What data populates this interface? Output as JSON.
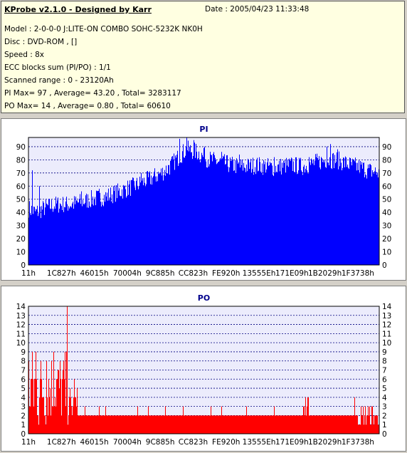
{
  "header": {
    "title": "KProbe v2.1.0 - Designed by Karr",
    "date": "Date : 2005/04/23 11:33:48",
    "lines": [
      "Model : 2-0-0-0 J:LITE-ON COMBO SOHC-5232K NK0H",
      "Disc : DVD-ROM ,  []",
      "Speed : 8x",
      "ECC blocks sum (PI/PO) : 1/1",
      "Scanned range : 0 - 23120Ah",
      "PI Max= 97 , Average= 43.20 , Total= 3283117",
      "PO Max= 14 , Average= 0.80 , Total= 60610"
    ]
  },
  "colors": {
    "pi": "#0000ff",
    "po": "#ff0000",
    "grid": "#000080",
    "plot_bg": "#ececfc"
  },
  "chart_data": [
    {
      "type": "area",
      "title": "PI",
      "x_tick_labels": [
        "11h",
        "1C827h",
        "46015h",
        "70004h",
        "9C885h",
        "CC823h",
        "FE920h",
        "13555Eh",
        "171E09h",
        "1B2029h",
        "1F3738h"
      ],
      "ylim": [
        0,
        97
      ],
      "yticks": [
        0,
        10,
        20,
        30,
        40,
        50,
        60,
        70,
        80,
        90
      ],
      "grid": true,
      "series": [
        {
          "x_fraction": [
            0,
            0.02,
            0.05,
            0.08,
            0.12,
            0.15,
            0.18,
            0.22,
            0.25,
            0.28,
            0.32,
            0.35,
            0.38,
            0.4,
            0.42,
            0.45,
            0.48,
            0.5,
            0.52,
            0.55,
            0.58,
            0.6,
            0.62,
            0.65,
            0.68,
            0.7,
            0.72,
            0.75,
            0.78,
            0.8,
            0.82,
            0.85,
            0.88,
            0.9,
            0.92,
            0.95,
            0.97,
            1.0
          ],
          "values": [
            43,
            40,
            44,
            46,
            46,
            48,
            50,
            52,
            55,
            58,
            62,
            66,
            70,
            74,
            80,
            88,
            86,
            82,
            80,
            78,
            76,
            75,
            75,
            76,
            75,
            74,
            75,
            76,
            75,
            76,
            78,
            80,
            80,
            78,
            76,
            74,
            72,
            70
          ],
          "spikes": [
            [
              0.01,
              72
            ],
            [
              0.03,
              60
            ],
            [
              0.15,
              56
            ],
            [
              0.2,
              58
            ],
            [
              0.32,
              70
            ],
            [
              0.4,
              76
            ],
            [
              0.43,
              96
            ],
            [
              0.45,
              97
            ],
            [
              0.47,
              95
            ],
            [
              0.5,
              90
            ],
            [
              0.55,
              86
            ],
            [
              0.6,
              84
            ],
            [
              0.65,
              80
            ],
            [
              0.7,
              82
            ],
            [
              0.8,
              82
            ],
            [
              0.85,
              90
            ],
            [
              0.86,
              92
            ],
            [
              0.88,
              88
            ],
            [
              0.95,
              78
            ]
          ]
        }
      ]
    },
    {
      "type": "bar",
      "title": "PO",
      "x_tick_labels": [
        "11h",
        "1C827h",
        "46015h",
        "70004h",
        "9C885h",
        "CC823h",
        "FE920h",
        "13555Eh",
        "171E09h",
        "1B2029h",
        "1F3738h"
      ],
      "ylim": [
        0,
        14
      ],
      "yticks": [
        0,
        1,
        2,
        3,
        4,
        5,
        6,
        7,
        8,
        9,
        10,
        11,
        12,
        13,
        14
      ],
      "grid": true,
      "series": [
        {
          "segments": [
            {
              "from": 0.0,
              "to": 0.03,
              "base": 5,
              "var": 5
            },
            {
              "from": 0.03,
              "to": 0.11,
              "base": 5,
              "var": 4
            },
            {
              "from": 0.11,
              "to": 0.14,
              "base": 3,
              "var": 2
            },
            {
              "from": 0.14,
              "to": 0.78,
              "base": 2,
              "var": 0
            },
            {
              "from": 0.78,
              "to": 0.8,
              "base": 3,
              "var": 1
            },
            {
              "from": 0.8,
              "to": 0.94,
              "base": 2,
              "var": 0
            },
            {
              "from": 0.94,
              "to": 1.0,
              "base": 2,
              "var": 1
            }
          ],
          "spikes": [
            [
              0.02,
              9
            ],
            [
              0.05,
              8
            ],
            [
              0.07,
              9
            ],
            [
              0.09,
              7
            ],
            [
              0.11,
              14
            ],
            [
              0.13,
              6
            ],
            [
              0.16,
              3
            ],
            [
              0.2,
              3
            ],
            [
              0.22,
              3
            ],
            [
              0.31,
              3
            ],
            [
              0.34,
              3
            ],
            [
              0.39,
              3
            ],
            [
              0.44,
              3
            ],
            [
              0.52,
              3
            ],
            [
              0.55,
              3
            ],
            [
              0.62,
              3
            ],
            [
              0.7,
              3
            ],
            [
              0.79,
              4
            ],
            [
              0.93,
              4
            ],
            [
              0.96,
              3
            ]
          ]
        }
      ]
    }
  ]
}
